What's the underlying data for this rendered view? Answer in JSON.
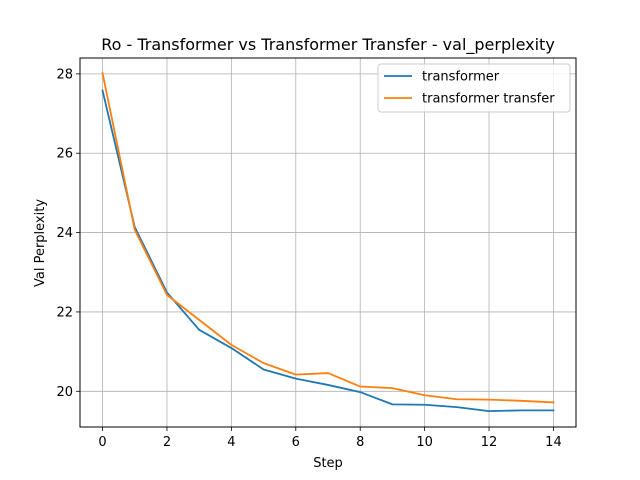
{
  "chart_data": {
    "type": "line",
    "title": "Ro - Transformer vs Transformer Transfer - val_perplexity",
    "xlabel": "Step",
    "ylabel": "Val Perplexity",
    "x": [
      0,
      1,
      2,
      3,
      4,
      5,
      6,
      7,
      8,
      9,
      10,
      11,
      12,
      13,
      14
    ],
    "xlim": [
      -0.7,
      14.7
    ],
    "ylim": [
      19.1,
      28.4
    ],
    "xticks": [
      0,
      2,
      4,
      6,
      8,
      10,
      12,
      14
    ],
    "yticks": [
      20,
      22,
      24,
      26,
      28
    ],
    "grid": true,
    "legend_position": "top-right",
    "series": [
      {
        "name": "transformer",
        "color": "#1f77b4",
        "values": [
          27.58,
          24.14,
          22.49,
          21.55,
          21.09,
          20.55,
          20.32,
          20.16,
          19.98,
          19.67,
          19.66,
          19.6,
          19.5,
          19.52,
          19.52
        ]
      },
      {
        "name": "transformer transfer",
        "color": "#ff7f0e",
        "values": [
          28.02,
          24.07,
          22.43,
          21.8,
          21.17,
          20.71,
          20.42,
          20.46,
          20.12,
          20.08,
          19.9,
          19.8,
          19.79,
          19.76,
          19.72
        ]
      }
    ]
  }
}
